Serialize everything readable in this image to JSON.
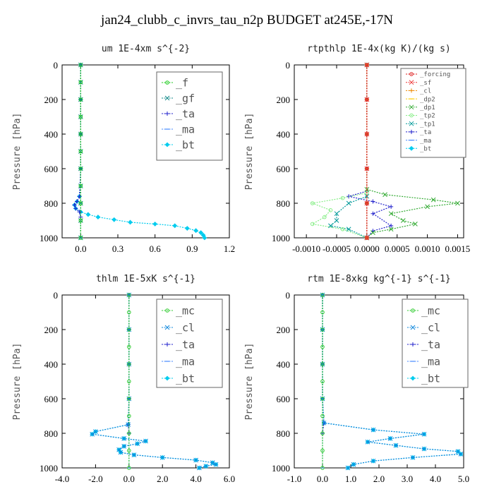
{
  "page_title": "jan24_clubb_c_invrs_tau_n2p  BUDGET at245E,-17N",
  "chart_data": [
    {
      "type": "line",
      "title": "um  1E-4xm s^{-2}",
      "ylabel": "Pressure [hPa]",
      "xlim": [
        -0.15,
        1.2
      ],
      "ylim": [
        1000,
        0
      ],
      "xticks": [
        0.0,
        0.3,
        0.6,
        0.9,
        1.2
      ],
      "xtick_labels": [
        "0.0",
        "0.3",
        "0.6",
        "0.9",
        "1.2"
      ],
      "yticks": [
        0,
        200,
        400,
        600,
        800,
        1000
      ],
      "ytick_labels": [
        "0",
        "200",
        "400",
        "600",
        "800",
        "1000"
      ],
      "legend_position": "top-right",
      "series": [
        {
          "name": "_f",
          "color": "#22cc22",
          "marker": "circle",
          "x": [
            0,
            0,
            0,
            0,
            0,
            0,
            0,
            0,
            0,
            0,
            0
          ],
          "y": [
            0,
            100,
            200,
            300,
            400,
            500,
            600,
            700,
            800,
            900,
            1000
          ]
        },
        {
          "name": "_gf",
          "color": "#118888",
          "marker": "x",
          "x": [
            0,
            0,
            0,
            0,
            0,
            0,
            0,
            0,
            0,
            0,
            0
          ],
          "y": [
            0,
            100,
            200,
            300,
            400,
            500,
            600,
            700,
            800,
            900,
            1000
          ]
        },
        {
          "name": "_ta",
          "color": "#2222cc",
          "marker": "plus",
          "x": [
            0,
            0,
            0,
            0,
            -0.01,
            -0.03,
            -0.05,
            -0.04,
            -0.01,
            0.0
          ],
          "y": [
            0,
            200,
            400,
            600,
            760,
            790,
            810,
            830,
            850,
            880
          ]
        },
        {
          "name": "_ma",
          "color": "#4488ff",
          "marker": "dash",
          "x": [
            0,
            0,
            0,
            0,
            0,
            0
          ],
          "y": [
            0,
            200,
            400,
            600,
            800,
            1000
          ]
        },
        {
          "name": "_bt",
          "color": "#00ccee",
          "marker": "diamond",
          "x": [
            0,
            0,
            0,
            0,
            -0.01,
            -0.03,
            -0.05,
            -0.04,
            0.0,
            0.06,
            0.14,
            0.27,
            0.4,
            0.6,
            0.76,
            0.86,
            0.93,
            0.97,
            0.99,
            1.0
          ],
          "y": [
            0,
            200,
            400,
            600,
            760,
            790,
            810,
            830,
            850,
            865,
            880,
            895,
            910,
            920,
            930,
            945,
            958,
            970,
            985,
            1000
          ]
        }
      ]
    },
    {
      "type": "line",
      "title": "rtpthlp  1E-4x(kg K)/(kg s)",
      "ylabel": "Pressure [hPa]",
      "xlim": [
        -0.0012,
        0.0016
      ],
      "ylim": [
        1000,
        0
      ],
      "xticks": [
        -0.001,
        -0.0005,
        0.0,
        0.0005,
        0.001,
        0.0015
      ],
      "xtick_labels": [
        "-0.0010",
        "-0.0005",
        "0.0000",
        "0.0005",
        "0.0010",
        "0.0015"
      ],
      "yticks": [
        0,
        200,
        400,
        600,
        800,
        1000
      ],
      "ytick_labels": [
        "0",
        "200",
        "400",
        "600",
        "800",
        "1000"
      ],
      "legend_position": "top-right",
      "series": [
        {
          "name": "_forcing",
          "color": "#dd2222",
          "marker": "circle",
          "x": [
            0,
            0,
            0,
            0,
            0,
            0
          ],
          "y": [
            0,
            200,
            400,
            600,
            800,
            1000
          ]
        },
        {
          "name": "_sf",
          "color": "#ee3333",
          "marker": "x",
          "x": [
            0,
            0,
            0,
            0,
            0,
            0
          ],
          "y": [
            0,
            200,
            400,
            600,
            800,
            1000
          ]
        },
        {
          "name": "_cl",
          "color": "#ee8800",
          "marker": "plus",
          "x": [
            0,
            0,
            0,
            0,
            0,
            0
          ],
          "y": [
            0,
            200,
            400,
            600,
            800,
            1000
          ]
        },
        {
          "name": "_dp2",
          "color": "#ffcc00",
          "marker": "dash",
          "x": [
            0,
            0,
            0,
            0,
            0,
            0
          ],
          "y": [
            0,
            200,
            400,
            600,
            800,
            1000
          ]
        },
        {
          "name": "_dp1",
          "color": "#33aa33",
          "marker": "x",
          "x": [
            0,
            0,
            0.0003,
            0.0011,
            0.0015,
            0.001,
            0.0004,
            0.0006,
            0.0008,
            0.0004,
            0.0001,
            0
          ],
          "y": [
            0,
            720,
            750,
            780,
            800,
            820,
            860,
            900,
            920,
            950,
            970,
            1000
          ]
        },
        {
          "name": "_tp2",
          "color": "#88ee88",
          "marker": "circle",
          "x": [
            0,
            0,
            -0.0004,
            -0.0009,
            -0.0006,
            -0.0007,
            -0.0009,
            -0.0004,
            0
          ],
          "y": [
            0,
            740,
            770,
            800,
            840,
            880,
            920,
            950,
            1000
          ]
        },
        {
          "name": "_tp1",
          "color": "#009999",
          "marker": "x",
          "x": [
            0,
            0,
            -0.0003,
            -0.0005,
            -0.0005,
            -0.0006,
            -0.0003,
            0
          ],
          "y": [
            0,
            760,
            800,
            860,
            900,
            930,
            950,
            1000
          ]
        },
        {
          "name": "_ta",
          "color": "#2222cc",
          "marker": "plus",
          "x": [
            0,
            0,
            -0.0003,
            0.0001,
            0.0004,
            0.0001,
            0.0004,
            0.0001,
            0
          ],
          "y": [
            0,
            730,
            760,
            790,
            820,
            860,
            930,
            960,
            1000
          ]
        },
        {
          "name": "_ma",
          "color": "#4488ff",
          "marker": "dash",
          "x": [
            0,
            0,
            0,
            0,
            0,
            0
          ],
          "y": [
            0,
            200,
            400,
            600,
            800,
            1000
          ]
        },
        {
          "name": "_bt",
          "color": "#00ccee",
          "marker": "diamond",
          "x": [
            0,
            0,
            0,
            0,
            0,
            0
          ],
          "y": [
            0,
            200,
            400,
            600,
            800,
            1000
          ]
        }
      ]
    },
    {
      "type": "line",
      "title": "thlm  1E-5xK s^{-1}",
      "ylabel": "Pressure [hPa]",
      "xlim": [
        -4.0,
        6.0
      ],
      "ylim": [
        1000,
        0
      ],
      "xticks": [
        -4.0,
        -2.0,
        0.0,
        2.0,
        4.0,
        6.0
      ],
      "xtick_labels": [
        "-4.0",
        "-2.0",
        "0.0",
        "2.0",
        "4.0",
        "6.0"
      ],
      "yticks": [
        0,
        200,
        400,
        600,
        800,
        1000
      ],
      "ytick_labels": [
        "0",
        "200",
        "400",
        "600",
        "800",
        "1000"
      ],
      "legend_position": "top-right",
      "series": [
        {
          "name": "_mc",
          "color": "#33cc33",
          "marker": "circle",
          "x": [
            0,
            0,
            0,
            0,
            0,
            0,
            0,
            0,
            0,
            0,
            0
          ],
          "y": [
            0,
            100,
            200,
            300,
            400,
            500,
            600,
            700,
            800,
            900,
            1000
          ]
        },
        {
          "name": "_cl",
          "color": "#1188dd",
          "marker": "x",
          "x": [
            0,
            0,
            0,
            0,
            -0.05,
            -2.0,
            -2.2,
            -0.3,
            1.0,
            0.5,
            -0.3,
            -0.6,
            -0.5,
            0.3,
            2.0,
            4.0,
            5.0,
            5.2,
            4.6,
            4.2
          ],
          "y": [
            0,
            200,
            400,
            600,
            750,
            790,
            805,
            830,
            845,
            860,
            875,
            895,
            910,
            925,
            940,
            955,
            970,
            980,
            990,
            1000
          ]
        },
        {
          "name": "_ta",
          "color": "#2222cc",
          "marker": "plus",
          "x": [
            0,
            0,
            0,
            0,
            -0.05,
            0.0
          ],
          "y": [
            0,
            200,
            400,
            600,
            750,
            800
          ]
        },
        {
          "name": "_ma",
          "color": "#4488ff",
          "marker": "dash",
          "x": [
            0,
            0,
            0,
            0,
            0,
            0
          ],
          "y": [
            0,
            200,
            400,
            600,
            800,
            1000
          ]
        },
        {
          "name": "_bt",
          "color": "#00ccee",
          "marker": "diamond",
          "x": [
            0,
            0,
            0,
            0,
            -0.05,
            -2.0,
            -2.2,
            -0.3,
            1.0,
            0.5,
            -0.3,
            -0.6,
            -0.5,
            0.3,
            2.0,
            4.0,
            5.0,
            5.2,
            4.6,
            4.2
          ],
          "y": [
            0,
            200,
            400,
            600,
            750,
            790,
            805,
            830,
            845,
            860,
            875,
            895,
            910,
            925,
            940,
            955,
            970,
            980,
            990,
            1000
          ]
        }
      ]
    },
    {
      "type": "line",
      "title": "rtm  1E-8xkg kg^{-1} s^{-1}",
      "ylabel": "Pressure [hPa]",
      "xlim": [
        -1.0,
        5.0
      ],
      "ylim": [
        1000,
        0
      ],
      "xticks": [
        -1.0,
        0.0,
        1.0,
        2.0,
        3.0,
        4.0,
        5.0
      ],
      "xtick_labels": [
        "-1.0",
        "0.0",
        "1.0",
        "2.0",
        "3.0",
        "4.0",
        "5.0"
      ],
      "yticks": [
        0,
        200,
        400,
        600,
        800,
        1000
      ],
      "ytick_labels": [
        "0",
        "200",
        "400",
        "600",
        "800",
        "1000"
      ],
      "legend_position": "top-right",
      "series": [
        {
          "name": "_mc",
          "color": "#33cc33",
          "marker": "circle",
          "x": [
            0,
            0,
            0,
            0,
            0,
            0,
            0,
            0,
            0,
            0,
            0
          ],
          "y": [
            0,
            100,
            200,
            300,
            400,
            500,
            600,
            700,
            800,
            900,
            1000
          ]
        },
        {
          "name": "_cl",
          "color": "#1188dd",
          "marker": "x",
          "x": [
            0,
            0,
            0,
            0,
            0.05,
            1.8,
            3.6,
            2.4,
            1.6,
            2.6,
            3.6,
            4.8,
            4.9,
            3.2,
            1.8,
            1.1,
            0.9
          ],
          "y": [
            0,
            200,
            400,
            600,
            740,
            780,
            805,
            830,
            850,
            870,
            890,
            905,
            920,
            940,
            960,
            980,
            1000
          ]
        },
        {
          "name": "_ta",
          "color": "#2222cc",
          "marker": "plus",
          "x": [
            0,
            0,
            0,
            0,
            0.05,
            0.0
          ],
          "y": [
            0,
            200,
            400,
            600,
            740,
            800
          ]
        },
        {
          "name": "_ma",
          "color": "#4488ff",
          "marker": "dash",
          "x": [
            0,
            0,
            0,
            0,
            0,
            0
          ],
          "y": [
            0,
            200,
            400,
            600,
            800,
            1000
          ]
        },
        {
          "name": "_bt",
          "color": "#00ccee",
          "marker": "diamond",
          "x": [
            0,
            0,
            0,
            0,
            0.05,
            1.8,
            3.6,
            2.4,
            1.6,
            2.6,
            3.6,
            4.8,
            4.9,
            3.2,
            1.8,
            1.1,
            0.9
          ],
          "y": [
            0,
            200,
            400,
            600,
            740,
            780,
            805,
            830,
            850,
            870,
            890,
            905,
            920,
            940,
            960,
            980,
            1000
          ]
        }
      ]
    }
  ]
}
